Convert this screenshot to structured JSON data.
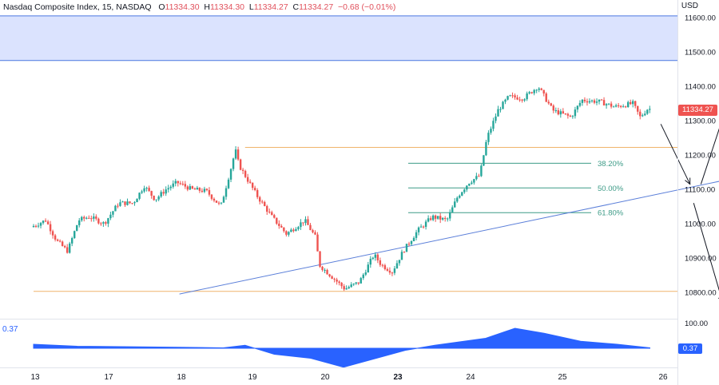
{
  "legend": {
    "symbol": "Nasdaq Composite Index, 15, NASDAQ",
    "open_label": "O",
    "open": "11334.30",
    "high_label": "H",
    "high": "11334.30",
    "low_label": "L",
    "low": "11334.27",
    "close_label": "C",
    "close": "11334.27",
    "change": "−0.68 (−0.01%)"
  },
  "price_axis": {
    "currency": "USD",
    "last_price": "11334.27"
  },
  "oscillator": {
    "value_label": "0.37",
    "last_value": "0.37",
    "axis_label": "100.00"
  },
  "colors": {
    "up": "#26a69a",
    "down": "#ef5350",
    "zone_fill": "#dbe3fe",
    "zone_border": "#4a78e0",
    "level_line": "#f0b46a",
    "trendline": "#5b7fd9",
    "fib": "#3d9b87",
    "oscillator": "#2962ff"
  },
  "chart_data": {
    "type": "candlestick",
    "title": "Nasdaq Composite Index, 15, NASDAQ",
    "ylabel": "USD",
    "ylim": [
      10750,
      11650
    ],
    "y_ticks": [
      "11600.00",
      "11500.00",
      "11400.00",
      "11300.00",
      "11200.00",
      "11100.00",
      "11000.00",
      "10900.00",
      "10800.00"
    ],
    "x_ticks": [
      "13",
      "17",
      "18",
      "19",
      "20",
      "23",
      "24",
      "25",
      "26"
    ],
    "grid": false,
    "price_path": [
      {
        "x": 0.0,
        "y": 10990
      },
      {
        "x": 0.2,
        "y": 11010
      },
      {
        "x": 0.35,
        "y": 10950
      },
      {
        "x": 0.5,
        "y": 10920
      },
      {
        "x": 0.65,
        "y": 11010
      },
      {
        "x": 0.8,
        "y": 11020
      },
      {
        "x": 1.0,
        "y": 11000
      },
      {
        "x": 1.2,
        "y": 11060
      },
      {
        "x": 1.4,
        "y": 11060
      },
      {
        "x": 1.55,
        "y": 11110
      },
      {
        "x": 1.7,
        "y": 11070
      },
      {
        "x": 1.85,
        "y": 11100
      },
      {
        "x": 2.0,
        "y": 11120
      },
      {
        "x": 2.2,
        "y": 11100
      },
      {
        "x": 2.4,
        "y": 11095
      },
      {
        "x": 2.6,
        "y": 11050
      },
      {
        "x": 2.75,
        "y": 11170
      },
      {
        "x": 2.8,
        "y": 11215
      },
      {
        "x": 2.85,
        "y": 11170
      },
      {
        "x": 3.1,
        "y": 11080
      },
      {
        "x": 3.3,
        "y": 11020
      },
      {
        "x": 3.5,
        "y": 10970
      },
      {
        "x": 3.75,
        "y": 11010
      },
      {
        "x": 3.9,
        "y": 10960
      },
      {
        "x": 3.95,
        "y": 10880
      },
      {
        "x": 4.1,
        "y": 10850
      },
      {
        "x": 4.3,
        "y": 10810
      },
      {
        "x": 4.5,
        "y": 10830
      },
      {
        "x": 4.7,
        "y": 10910
      },
      {
        "x": 4.8,
        "y": 10880
      },
      {
        "x": 4.95,
        "y": 10860
      },
      {
        "x": 5.1,
        "y": 10920
      },
      {
        "x": 5.3,
        "y": 10980
      },
      {
        "x": 5.5,
        "y": 11020
      },
      {
        "x": 5.7,
        "y": 11010
      },
      {
        "x": 5.85,
        "y": 11080
      },
      {
        "x": 6.0,
        "y": 11120
      },
      {
        "x": 6.15,
        "y": 11140
      },
      {
        "x": 6.25,
        "y": 11250
      },
      {
        "x": 6.4,
        "y": 11330
      },
      {
        "x": 6.55,
        "y": 11370
      },
      {
        "x": 6.75,
        "y": 11365
      },
      {
        "x": 6.95,
        "y": 11400
      },
      {
        "x": 7.15,
        "y": 11330
      },
      {
        "x": 7.4,
        "y": 11310
      },
      {
        "x": 7.55,
        "y": 11360
      },
      {
        "x": 7.8,
        "y": 11355
      },
      {
        "x": 8.0,
        "y": 11340
      },
      {
        "x": 8.25,
        "y": 11350
      },
      {
        "x": 8.35,
        "y": 11310
      },
      {
        "x": 8.45,
        "y": 11334
      }
    ],
    "oscillator": {
      "label": "0.37",
      "axis_ticks": [
        "100.00"
      ],
      "path": [
        {
          "x": 0.0,
          "y": 0.2
        },
        {
          "x": 0.6,
          "y": 0.1
        },
        {
          "x": 1.2,
          "y": 0.08
        },
        {
          "x": 2.0,
          "y": 0.05
        },
        {
          "x": 2.6,
          "y": 0.02
        },
        {
          "x": 2.9,
          "y": 0.15
        },
        {
          "x": 3.3,
          "y": -0.3
        },
        {
          "x": 3.8,
          "y": -0.5
        },
        {
          "x": 4.25,
          "y": -0.95
        },
        {
          "x": 4.8,
          "y": -0.4
        },
        {
          "x": 5.1,
          "y": -0.1
        },
        {
          "x": 5.5,
          "y": 0.15
        },
        {
          "x": 6.2,
          "y": 0.5
        },
        {
          "x": 6.6,
          "y": 1.0
        },
        {
          "x": 7.0,
          "y": 0.75
        },
        {
          "x": 7.5,
          "y": 0.35
        },
        {
          "x": 8.0,
          "y": 0.2
        },
        {
          "x": 8.45,
          "y": 0.02
        }
      ]
    },
    "annotations": {
      "resistance_zone": [
        11475,
        11605
      ],
      "horizontal_levels": [
        {
          "y": 11222,
          "x_start": 2.9
        },
        {
          "y": 10803,
          "x_start": 0.0
        }
      ],
      "trendline": {
        "from": {
          "x": 2.0,
          "y": 10795
        },
        "to": {
          "x": 10.5,
          "y": 11172
        }
      },
      "fibonacci": [
        {
          "label": "38.20%",
          "y": 11176
        },
        {
          "label": "50.00%",
          "y": 11104
        },
        {
          "label": "61.80%",
          "y": 11032
        }
      ],
      "arrows": [
        {
          "from": {
            "x": 8.6,
            "y": 11290
          },
          "to": {
            "x": 9.0,
            "y": 11115
          }
        },
        {
          "from": {
            "x": 9.15,
            "y": 11115
          },
          "to": {
            "x": 9.85,
            "y": 11565
          }
        },
        {
          "from": {
            "x": 9.05,
            "y": 11060
          },
          "to": {
            "x": 9.45,
            "y": 10770
          }
        }
      ]
    }
  }
}
